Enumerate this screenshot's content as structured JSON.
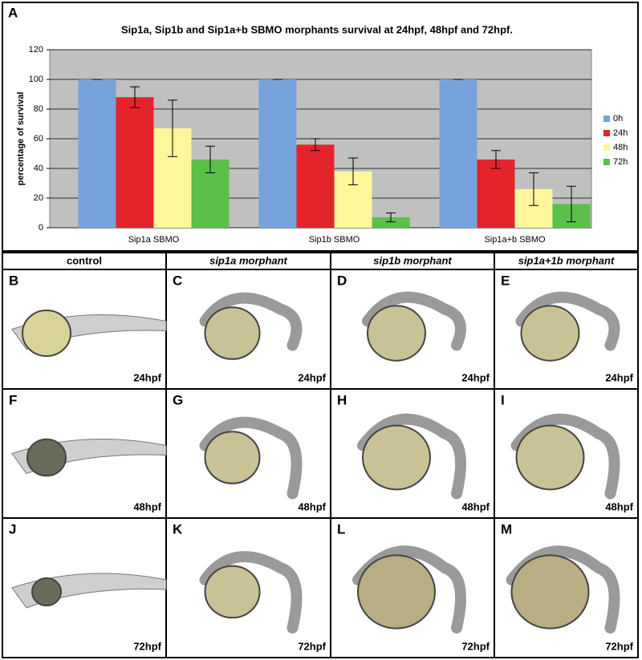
{
  "panel_a": "A",
  "chart_data": {
    "type": "bar",
    "title": "Sip1a, Sip1b and Sip1a+b SBMO morphants survival at 24hpf, 48hpf and 72hpf.",
    "y_label": "percentage of survival",
    "categories": [
      "Sip1a SBMO",
      "Sip1b SBMO",
      "Sip1a+b SBMO"
    ],
    "series": [
      {
        "name": "0h",
        "color": "#77a3dc",
        "values": [
          100,
          100,
          100
        ],
        "errors": [
          0,
          0,
          0
        ]
      },
      {
        "name": "24h",
        "color": "#e3252b",
        "values": [
          88,
          56,
          46
        ],
        "errors": [
          7,
          4,
          6
        ]
      },
      {
        "name": "48h",
        "color": "#fdf69a",
        "values": [
          67,
          38,
          26
        ],
        "errors": [
          19,
          9,
          11
        ]
      },
      {
        "name": "72h",
        "color": "#5cbf4a",
        "values": [
          46,
          7,
          16
        ],
        "errors": [
          9,
          3,
          12
        ]
      }
    ],
    "ylim": [
      0,
      120
    ],
    "yticks": [
      0,
      20,
      40,
      60,
      80,
      100,
      120
    ],
    "grid": true,
    "legend": "right"
  },
  "panels": {
    "headers": [
      "control",
      "sip1a morphant",
      "sip1b morphant",
      "sip1a+1b morphant"
    ],
    "letters": [
      [
        "B",
        "C",
        "D",
        "E"
      ],
      [
        "F",
        "G",
        "H",
        "I"
      ],
      [
        "J",
        "K",
        "L",
        "M"
      ]
    ],
    "stages": [
      [
        "24hpf",
        "24hpf",
        "24hpf",
        "24hpf"
      ],
      [
        "48hpf",
        "48hpf",
        "48hpf",
        "48hpf"
      ],
      [
        "72hpf",
        "72hpf",
        "72hpf",
        "72hpf"
      ]
    ]
  }
}
